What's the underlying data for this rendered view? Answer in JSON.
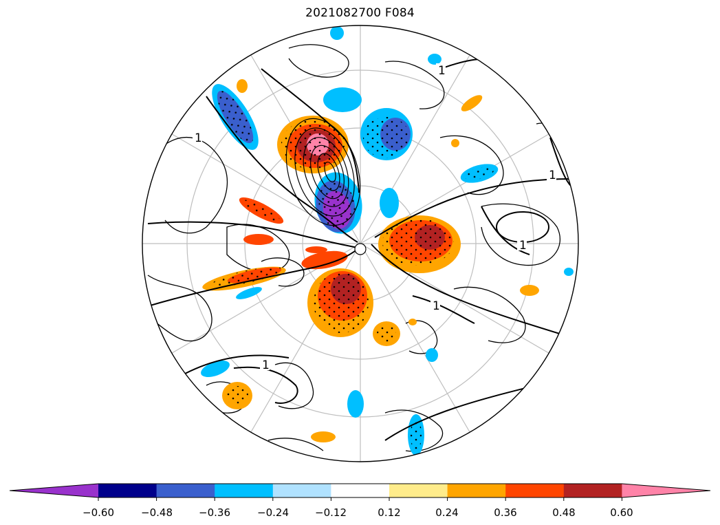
{
  "title": "2021082700 F084",
  "colorbar": {
    "colors": [
      "#9932CC",
      "#00008B",
      "#3A5FCD",
      "#00BFFF",
      "#B0E2FF",
      "#FFFFFF",
      "#FFEC8B",
      "#FFA500",
      "#FF4500",
      "#B22222",
      "#FF83A8"
    ],
    "ticks": [
      "−0.60",
      "−0.48",
      "−0.36",
      "−0.24",
      "−0.12",
      "0.12",
      "0.24",
      "0.36",
      "0.48",
      "0.60"
    ],
    "extend": "both"
  },
  "contour_labels": [
    "1",
    "1",
    "1",
    "1",
    "1",
    "1"
  ],
  "map": {
    "projection": "north polar stereographic",
    "stippling": "significant regions dotted",
    "graticule_color": "#BEBEBE"
  }
}
